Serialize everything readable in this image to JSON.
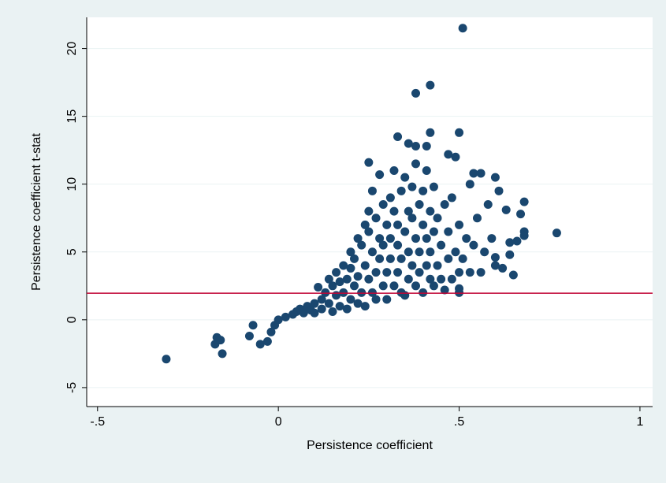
{
  "chart_data": {
    "type": "scatter",
    "x_label": "Persistence coefficient",
    "y_label": "Persistence coefficient t-stat",
    "xlim": [
      -0.53,
      1.035
    ],
    "ylim": [
      -6.4,
      22.3
    ],
    "xticks": [
      {
        "value": -0.5,
        "label": "-.5"
      },
      0,
      {
        "value": 0.5,
        "label": ".5"
      },
      1
    ],
    "yticks": [
      -5,
      0,
      5,
      10,
      15,
      20
    ],
    "reference_line": 1.96,
    "reference_color": "#c10534",
    "color": "#1a476f",
    "x": [
      -0.31,
      -0.17,
      -0.175,
      -0.16,
      -0.155,
      -0.08,
      -0.07,
      -0.05,
      -0.03,
      -0.02,
      -0.01,
      0.77,
      0.51,
      0.42,
      0.38,
      0.42,
      0.5,
      0.33,
      0.36,
      0.38,
      0.41,
      0.47,
      0.49,
      0.25,
      0.54,
      0.56,
      0.6,
      0.68,
      0.63,
      0.67,
      0.68,
      0.68,
      0.66,
      0.64,
      0.64,
      0.65,
      0.62,
      0.6,
      0.5,
      0.5,
      0.0,
      0.02,
      0.04,
      0.05,
      0.06,
      0.07,
      0.08,
      0.09,
      0.1,
      0.1,
      0.11,
      0.12,
      0.12,
      0.13,
      0.14,
      0.14,
      0.15,
      0.15,
      0.16,
      0.16,
      0.17,
      0.17,
      0.18,
      0.18,
      0.19,
      0.19,
      0.2,
      0.2,
      0.2,
      0.21,
      0.21,
      0.22,
      0.22,
      0.22,
      0.23,
      0.23,
      0.24,
      0.24,
      0.24,
      0.25,
      0.25,
      0.25,
      0.26,
      0.26,
      0.26,
      0.27,
      0.27,
      0.27,
      0.28,
      0.28,
      0.28,
      0.29,
      0.29,
      0.29,
      0.3,
      0.3,
      0.3,
      0.31,
      0.31,
      0.31,
      0.32,
      0.32,
      0.32,
      0.33,
      0.33,
      0.33,
      0.34,
      0.34,
      0.34,
      0.35,
      0.35,
      0.35,
      0.36,
      0.36,
      0.36,
      0.37,
      0.37,
      0.37,
      0.38,
      0.38,
      0.38,
      0.39,
      0.39,
      0.39,
      0.4,
      0.4,
      0.4,
      0.41,
      0.41,
      0.41,
      0.42,
      0.42,
      0.42,
      0.43,
      0.43,
      0.43,
      0.44,
      0.44,
      0.45,
      0.45,
      0.46,
      0.46,
      0.47,
      0.47,
      0.48,
      0.48,
      0.49,
      0.5,
      0.5,
      0.51,
      0.52,
      0.53,
      0.53,
      0.54,
      0.55,
      0.56,
      0.57,
      0.58,
      0.59,
      0.6,
      0.61
    ],
    "y": [
      -2.9,
      -1.3,
      -1.8,
      -1.5,
      -2.5,
      -1.2,
      -0.4,
      -1.8,
      -1.6,
      -0.9,
      -0.4,
      6.4,
      21.5,
      17.3,
      16.7,
      13.8,
      13.8,
      13.5,
      13.0,
      12.8,
      12.8,
      12.2,
      12.0,
      11.6,
      10.8,
      10.8,
      10.5,
      8.7,
      8.1,
      7.8,
      6.5,
      6.2,
      5.8,
      5.7,
      4.8,
      3.3,
      3.8,
      4.6,
      2.3,
      2.0,
      0.0,
      0.2,
      0.4,
      0.6,
      0.8,
      0.5,
      1.0,
      0.7,
      1.2,
      0.5,
      2.4,
      1.5,
      0.8,
      2.0,
      1.2,
      3.0,
      2.5,
      0.6,
      1.8,
      3.5,
      1.0,
      2.8,
      4.0,
      2.0,
      3.0,
      0.8,
      5.0,
      1.5,
      3.8,
      2.5,
      4.5,
      6.0,
      1.2,
      3.2,
      5.5,
      2.0,
      7.0,
      4.0,
      1.0,
      3.0,
      6.5,
      8.0,
      2.0,
      5.0,
      9.5,
      3.5,
      7.5,
      1.5,
      6.0,
      4.5,
      10.7,
      2.5,
      8.5,
      5.5,
      3.5,
      7.0,
      1.5,
      9.0,
      4.5,
      6.0,
      2.5,
      8.0,
      11.0,
      3.5,
      5.5,
      7.0,
      2.0,
      9.5,
      4.5,
      6.5,
      1.8,
      10.5,
      3.0,
      8.0,
      5.0,
      4.0,
      7.5,
      9.8,
      2.5,
      6.0,
      11.5,
      3.5,
      8.5,
      5.0,
      2.0,
      7.0,
      9.5,
      4.0,
      6.0,
      11.0,
      3.0,
      8.0,
      5.0,
      2.5,
      9.8,
      6.5,
      4.0,
      7.5,
      3.0,
      5.5,
      2.2,
      8.5,
      4.5,
      6.5,
      3.0,
      9.0,
      5.0,
      3.5,
      7.0,
      4.5,
      6.0,
      3.5,
      10.0,
      5.5,
      7.5,
      3.5,
      5.0,
      8.5,
      6.0,
      4.0,
      9.5
    ]
  }
}
